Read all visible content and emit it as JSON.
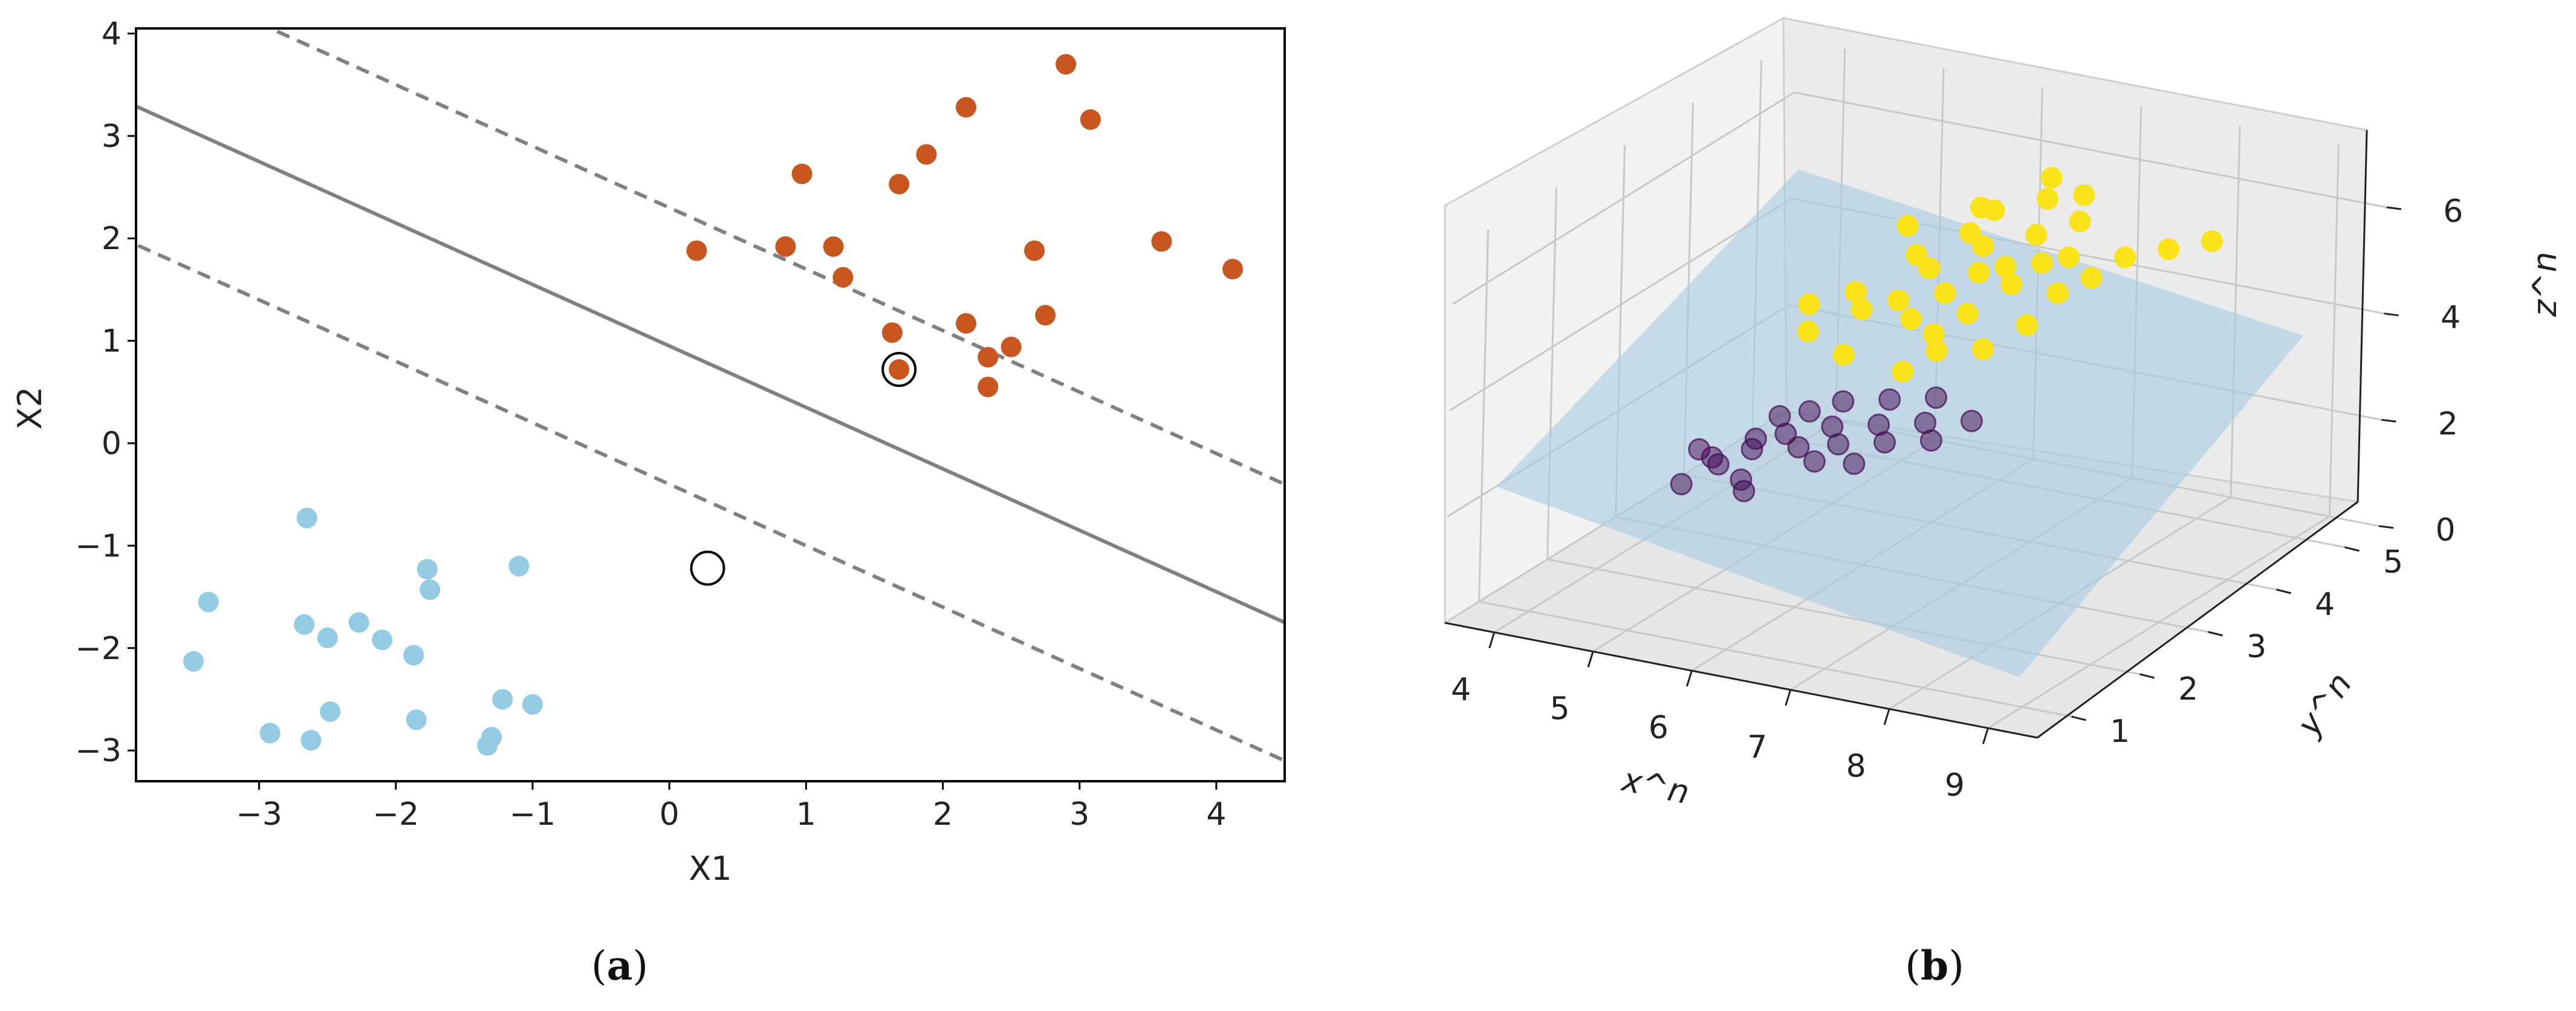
{
  "chart_data": [
    {
      "id": "a",
      "type": "scatter",
      "caption_letter": "a",
      "xlabel": "X1",
      "ylabel": "X2",
      "xlim": [
        -3.9,
        4.5
      ],
      "ylim": [
        -3.3,
        4.05
      ],
      "xticks": [
        -3,
        -2,
        -1,
        0,
        1,
        2,
        3,
        4
      ],
      "yticks": [
        -3,
        -2,
        -1,
        0,
        1,
        2,
        3,
        4
      ],
      "tick_labels_x": [
        "−3",
        "−2",
        "−1",
        "0",
        "1",
        "2",
        "3",
        "4"
      ],
      "tick_labels_y": [
        "−3",
        "−2",
        "−1",
        "0",
        "1",
        "2",
        "3",
        "4"
      ],
      "grid": false,
      "decision_boundary": {
        "slope": -0.6,
        "intercept": 0.95,
        "margin": 1.35
      },
      "series": [
        {
          "color": "#c9561e",
          "points": [
            [
              0.2,
              1.88
            ],
            [
              0.85,
              1.92
            ],
            [
              0.97,
              2.63
            ],
            [
              1.2,
              1.92
            ],
            [
              1.27,
              1.62
            ],
            [
              1.68,
              2.53
            ],
            [
              1.88,
              2.82
            ],
            [
              2.17,
              3.28
            ],
            [
              2.9,
              3.7
            ],
            [
              3.08,
              3.16
            ],
            [
              1.63,
              1.08
            ],
            [
              1.68,
              0.72
            ],
            [
              2.17,
              1.17
            ],
            [
              2.33,
              0.84
            ],
            [
              2.5,
              0.94
            ],
            [
              2.33,
              0.55
            ],
            [
              2.67,
              1.88
            ],
            [
              2.75,
              1.25
            ],
            [
              3.6,
              1.97
            ],
            [
              4.12,
              1.7
            ]
          ]
        },
        {
          "color": "#92cbe3",
          "points": [
            [
              -3.48,
              -2.13
            ],
            [
              -3.37,
              -1.55
            ],
            [
              -2.92,
              -2.83
            ],
            [
              -2.65,
              -0.73
            ],
            [
              -2.67,
              -1.77
            ],
            [
              -2.5,
              -1.9
            ],
            [
              -2.48,
              -2.62
            ],
            [
              -2.27,
              -1.75
            ],
            [
              -2.1,
              -1.92
            ],
            [
              -1.87,
              -2.07
            ],
            [
              -1.77,
              -1.23
            ],
            [
              -1.75,
              -1.43
            ],
            [
              -1.85,
              -2.7
            ],
            [
              -2.62,
              -2.9
            ],
            [
              -1.22,
              -2.5
            ],
            [
              -1.1,
              -1.2
            ],
            [
              -1.0,
              -2.55
            ],
            [
              -1.3,
              -2.87
            ],
            [
              -1.33,
              -2.95
            ]
          ]
        }
      ],
      "support_vectors": [
        [
          1.68,
          0.72
        ],
        [
          0.28,
          -1.22
        ]
      ]
    },
    {
      "id": "b",
      "type": "scatter",
      "caption_letter": "b",
      "xlabel": "x^n",
      "ylabel": "y^n",
      "zlabel": "z^n",
      "xlim": [
        3.5,
        9.5
      ],
      "ylim": [
        0.5,
        5.5
      ],
      "zlim": [
        0,
        7
      ],
      "xticks": [
        4,
        5,
        6,
        7,
        8,
        9
      ],
      "yticks": [
        1,
        2,
        3,
        4,
        5
      ],
      "zticks": [
        0,
        2,
        4,
        6
      ],
      "tick_labels_x": [
        "4",
        "5",
        "6",
        "7",
        "8",
        "9"
      ],
      "tick_labels_y": [
        "1",
        "2",
        "3",
        "4",
        "5"
      ],
      "tick_labels_z": [
        "0",
        "2",
        "4",
        "6"
      ],
      "grid": true,
      "plane_color": "#a9cce3",
      "series": [
        {
          "color": "#fbe31a",
          "points": [
            [
              6.7,
              2.6,
              5.2
            ],
            [
              6.9,
              2.8,
              5.6
            ],
            [
              7.1,
              3.0,
              5.9
            ],
            [
              7.3,
              3.1,
              6.0
            ],
            [
              7.0,
              3.2,
              6.2
            ],
            [
              7.5,
              2.9,
              5.9
            ],
            [
              6.8,
              3.3,
              6.3
            ],
            [
              7.2,
              2.7,
              5.4
            ],
            [
              6.6,
              3.0,
              5.8
            ],
            [
              7.4,
              3.4,
              6.4
            ],
            [
              7.6,
              3.2,
              6.1
            ],
            [
              7.0,
              2.5,
              5.1
            ],
            [
              6.5,
              2.7,
              5.4
            ],
            [
              7.8,
              3.3,
              6.2
            ],
            [
              6.9,
              3.5,
              6.6
            ],
            [
              7.1,
              2.4,
              4.9
            ],
            [
              7.7,
              3.6,
              6.6
            ],
            [
              6.4,
              3.1,
              5.9
            ],
            [
              7.3,
              3.7,
              6.8
            ],
            [
              7.9,
              3.0,
              5.8
            ],
            [
              6.2,
              2.6,
              5.2
            ],
            [
              6.0,
              2.8,
              5.3
            ],
            [
              6.7,
              3.6,
              6.5
            ],
            [
              7.5,
              2.5,
              5.0
            ],
            [
              8.1,
              3.2,
              6.0
            ],
            [
              5.8,
              2.4,
              4.8
            ],
            [
              6.3,
              2.2,
              4.7
            ],
            [
              7.2,
              3.9,
              7.0
            ],
            [
              8.3,
              3.4,
              6.3
            ],
            [
              5.6,
              2.7,
              5.0
            ],
            [
              6.9,
              2.2,
              4.6
            ],
            [
              7.8,
              2.7,
              5.4
            ],
            [
              8.6,
              3.6,
              6.4
            ],
            [
              8.9,
              3.8,
              6.5
            ],
            [
              6.1,
              3.4,
              6.1
            ],
            [
              7.6,
              3.8,
              6.9
            ]
          ]
        },
        {
          "color": "#440a55",
          "points": [
            [
              5.4,
              2.2,
              2.6
            ],
            [
              5.6,
              2.4,
              2.8
            ],
            [
              5.8,
              2.3,
              2.7
            ],
            [
              6.0,
              2.5,
              3.0
            ],
            [
              6.2,
              2.3,
              2.9
            ],
            [
              5.2,
              2.0,
              2.4
            ],
            [
              5.5,
              1.9,
              2.3
            ],
            [
              6.4,
              2.6,
              3.1
            ],
            [
              6.6,
              2.4,
              3.0
            ],
            [
              5.7,
              2.6,
              3.1
            ],
            [
              6.1,
              2.1,
              2.7
            ],
            [
              5.3,
              2.4,
              2.6
            ],
            [
              6.8,
              2.7,
              3.2
            ],
            [
              5.9,
              2.8,
              3.2
            ],
            [
              6.3,
              2.9,
              3.3
            ],
            [
              5.0,
              2.2,
              2.3
            ],
            [
              7.0,
              2.5,
              3.1
            ],
            [
              6.5,
              2.1,
              2.8
            ],
            [
              5.6,
              1.8,
              2.2
            ],
            [
              4.9,
              1.9,
              2.0
            ],
            [
              4.8,
              2.3,
              2.3
            ],
            [
              7.2,
              2.8,
              3.3
            ],
            [
              6.7,
              3.0,
              3.4
            ],
            [
              5.4,
              2.6,
              2.9
            ]
          ]
        }
      ]
    }
  ]
}
